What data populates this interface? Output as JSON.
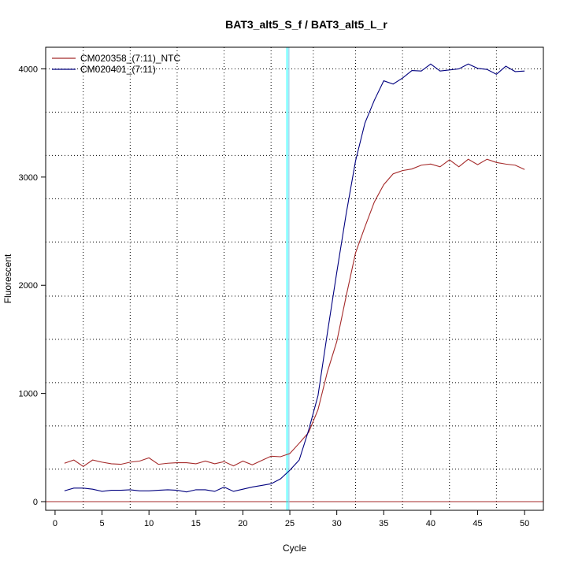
{
  "chart_data": {
    "type": "line",
    "title": "BAT3_alt5_S_f / BAT3_alt5_L_r",
    "xlabel": "Cycle",
    "ylabel": "Fluorescent",
    "xlim": [
      -1,
      52
    ],
    "ylim": [
      -80,
      4200
    ],
    "x_ticks": [
      0,
      5,
      10,
      15,
      20,
      25,
      30,
      35,
      40,
      45,
      50
    ],
    "y_ticks": [
      0,
      1000,
      2000,
      3000,
      4000
    ],
    "x_minor_grid": [
      3,
      8,
      13,
      18,
      23,
      27.5,
      32,
      37,
      42,
      47
    ],
    "y_minor_grid": [
      300,
      700,
      1100,
      1500,
      1900,
      2400,
      2800,
      3200,
      3600,
      4000
    ],
    "grid": true,
    "legend_position": "top-left",
    "threshold_y": 0,
    "threshold_color": "#a52a2a",
    "ct_lines": [
      {
        "x": 24.7,
        "color": "#00ffff"
      },
      {
        "x": 24.9,
        "color": "#87ceeb"
      }
    ],
    "x": [
      1,
      2,
      3,
      4,
      5,
      6,
      7,
      8,
      9,
      10,
      11,
      12,
      13,
      14,
      15,
      16,
      17,
      18,
      19,
      20,
      21,
      22,
      23,
      24,
      25,
      26,
      27,
      28,
      29,
      30,
      31,
      32,
      33,
      34,
      35,
      36,
      37,
      38,
      39,
      40,
      41,
      42,
      43,
      44,
      45,
      46,
      47,
      48,
      49,
      50
    ],
    "series": [
      {
        "name": "CM020358_(7:11)_NTC",
        "color": "#a52a2a",
        "values": [
          355,
          385,
          325,
          385,
          365,
          350,
          345,
          365,
          375,
          405,
          345,
          355,
          360,
          360,
          350,
          375,
          350,
          370,
          330,
          375,
          340,
          380,
          420,
          415,
          445,
          540,
          640,
          850,
          1200,
          1480,
          1900,
          2300,
          2540,
          2770,
          2930,
          3030,
          3060,
          3075,
          3110,
          3120,
          3095,
          3160,
          3095,
          3165,
          3115,
          3165,
          3135,
          3120,
          3110,
          3070
        ]
      },
      {
        "name": "CM020401_(7:11)",
        "color": "#00007f",
        "values": [
          100,
          125,
          125,
          115,
          95,
          105,
          105,
          110,
          100,
          100,
          105,
          110,
          105,
          90,
          110,
          110,
          95,
          135,
          95,
          115,
          135,
          150,
          165,
          210,
          290,
          385,
          660,
          980,
          1560,
          2120,
          2660,
          3150,
          3500,
          3710,
          3890,
          3860,
          3915,
          3985,
          3980,
          4045,
          3980,
          3990,
          4000,
          4045,
          4005,
          3995,
          3950,
          4025,
          3975,
          3980
        ]
      }
    ]
  }
}
